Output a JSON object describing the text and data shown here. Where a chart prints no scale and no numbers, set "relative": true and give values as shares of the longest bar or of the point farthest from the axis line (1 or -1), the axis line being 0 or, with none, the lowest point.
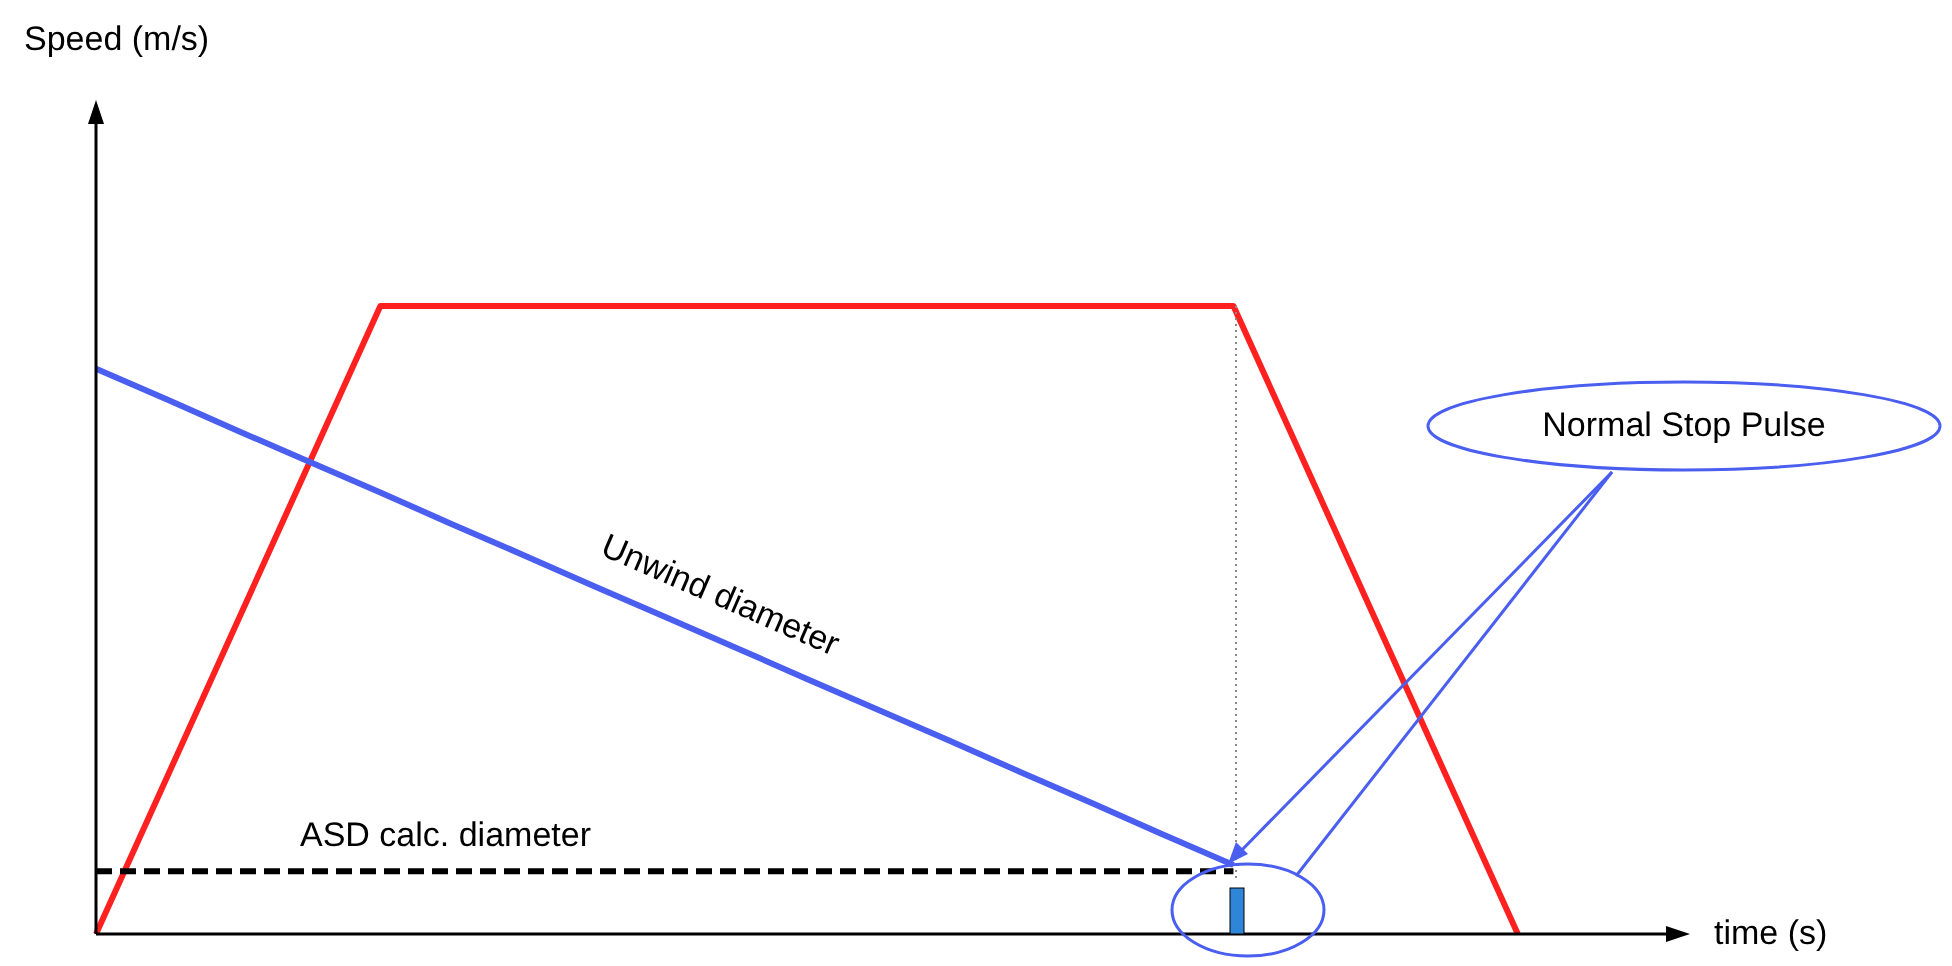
{
  "chart_data": {
    "type": "line",
    "relative": true,
    "xlabel": "time (s)",
    "annotations": [
      "Normal Stop Pulse",
      "Speed (m/s)"
    ],
    "categories": [
      null,
      null,
      null,
      null,
      null,
      null,
      null,
      null,
      null,
      null,
      null,
      null,
      null,
      null,
      null,
      null,
      null,
      null,
      null,
      null,
      null,
      null,
      null
    ],
    "series": [
      {
        "color": "#ff2020",
        "values": [
          0,
          0.25,
          0.5,
          0.75,
          1,
          1,
          1,
          1,
          1,
          1,
          1,
          1,
          1,
          1,
          1,
          1,
          1,
          0.75,
          0.5,
          0.25,
          0,
          null,
          null
        ]
      },
      {
        "name": "Unwind diameter",
        "color": "#4a5ef0",
        "values": [
          0.9,
          0.851,
          0.801,
          0.752,
          0.703,
          0.653,
          0.604,
          0.554,
          0.505,
          0.456,
          0.406,
          0.357,
          0.308,
          0.258,
          0.209,
          0.159,
          0.11,
          null,
          null,
          null,
          null,
          null,
          null
        ]
      },
      {
        "name": "ASD calc. diameter",
        "color": "#000000",
        "line_style": "dashed",
        "values": [
          0.1,
          0.1,
          0.1,
          0.1,
          0.1,
          0.1,
          0.1,
          0.1,
          0.1,
          0.1,
          0.1,
          0.1,
          0.1,
          0.1,
          0.1,
          0.1,
          0.1,
          null,
          null,
          null,
          null,
          null,
          null
        ]
      }
    ]
  }
}
